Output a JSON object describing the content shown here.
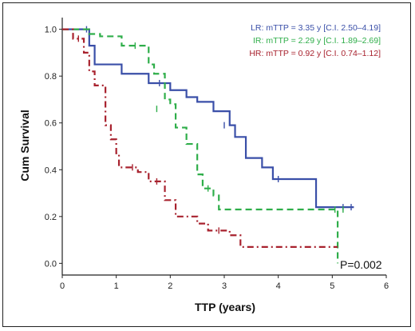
{
  "chart_data": {
    "type": "line",
    "xlabel": "TTP (years)",
    "ylabel": "Cum Survival",
    "xlim": [
      0,
      6
    ],
    "ylim": [
      -0.05,
      1.05
    ],
    "x_ticks": [
      "0",
      "1",
      "2",
      "3",
      "4",
      "5",
      "6"
    ],
    "y_ticks": [
      "0.0",
      "0.2",
      "0.4",
      "0.6",
      "0.8",
      "1.0"
    ],
    "grid": false,
    "legend_placement": "top-right",
    "annotation": "P=0.002",
    "series": [
      {
        "name": "LR: mTTP = 3.35 y [C.I. 2.50–4.19]",
        "color": "#3a4fa8",
        "dash": "solid",
        "steps": [
          [
            0,
            1.0
          ],
          [
            0.5,
            0.93
          ],
          [
            0.6,
            0.85
          ],
          [
            1.1,
            0.81
          ],
          [
            1.2,
            0.81
          ],
          [
            1.6,
            0.77
          ],
          [
            2.0,
            0.74
          ],
          [
            2.3,
            0.71
          ],
          [
            2.5,
            0.69
          ],
          [
            2.8,
            0.65
          ],
          [
            3.1,
            0.59
          ],
          [
            3.2,
            0.54
          ],
          [
            3.4,
            0.45
          ],
          [
            3.7,
            0.41
          ],
          [
            3.9,
            0.36
          ],
          [
            4.7,
            0.24
          ],
          [
            5.4,
            0.24
          ]
        ],
        "censored": [
          [
            0.45,
            1.0
          ],
          [
            1.8,
            0.77
          ],
          [
            3.0,
            0.59
          ],
          [
            4.0,
            0.36
          ],
          [
            5.2,
            0.24
          ],
          [
            5.35,
            0.24
          ]
        ]
      },
      {
        "name": "IR: mTTP = 2.29 y [C.I. 1.89–2.69]",
        "color": "#2fae4a",
        "dash": "8,5",
        "steps": [
          [
            0,
            1.0
          ],
          [
            0.5,
            0.98
          ],
          [
            0.7,
            0.97
          ],
          [
            1.1,
            0.93
          ],
          [
            1.6,
            0.85
          ],
          [
            1.7,
            0.81
          ],
          [
            1.9,
            0.7
          ],
          [
            2.0,
            0.68
          ],
          [
            2.1,
            0.58
          ],
          [
            2.3,
            0.51
          ],
          [
            2.5,
            0.38
          ],
          [
            2.6,
            0.32
          ],
          [
            2.8,
            0.29
          ],
          [
            2.9,
            0.23
          ],
          [
            5.1,
            0.0
          ]
        ],
        "censored": [
          [
            1.35,
            0.93
          ],
          [
            1.75,
            0.66
          ],
          [
            2.7,
            0.32
          ],
          [
            5.05,
            0.23
          ],
          [
            5.2,
            0.23
          ]
        ]
      },
      {
        "name": "HR: mTTP = 0.92 y [C.I. 0.74–1.12]",
        "color": "#a8222e",
        "dash": "8,4,2,4",
        "steps": [
          [
            0,
            1.0
          ],
          [
            0.2,
            0.96
          ],
          [
            0.4,
            0.9
          ],
          [
            0.5,
            0.82
          ],
          [
            0.6,
            0.76
          ],
          [
            0.8,
            0.59
          ],
          [
            0.9,
            0.53
          ],
          [
            1.0,
            0.47
          ],
          [
            1.05,
            0.41
          ],
          [
            1.4,
            0.39
          ],
          [
            1.6,
            0.35
          ],
          [
            1.9,
            0.27
          ],
          [
            2.1,
            0.2
          ],
          [
            2.5,
            0.17
          ],
          [
            2.7,
            0.14
          ],
          [
            3.1,
            0.12
          ],
          [
            3.3,
            0.07
          ],
          [
            5.1,
            0.07
          ]
        ],
        "censored": [
          [
            0.3,
            0.96
          ],
          [
            1.3,
            0.41
          ],
          [
            1.75,
            0.35
          ],
          [
            2.9,
            0.14
          ]
        ]
      }
    ]
  }
}
